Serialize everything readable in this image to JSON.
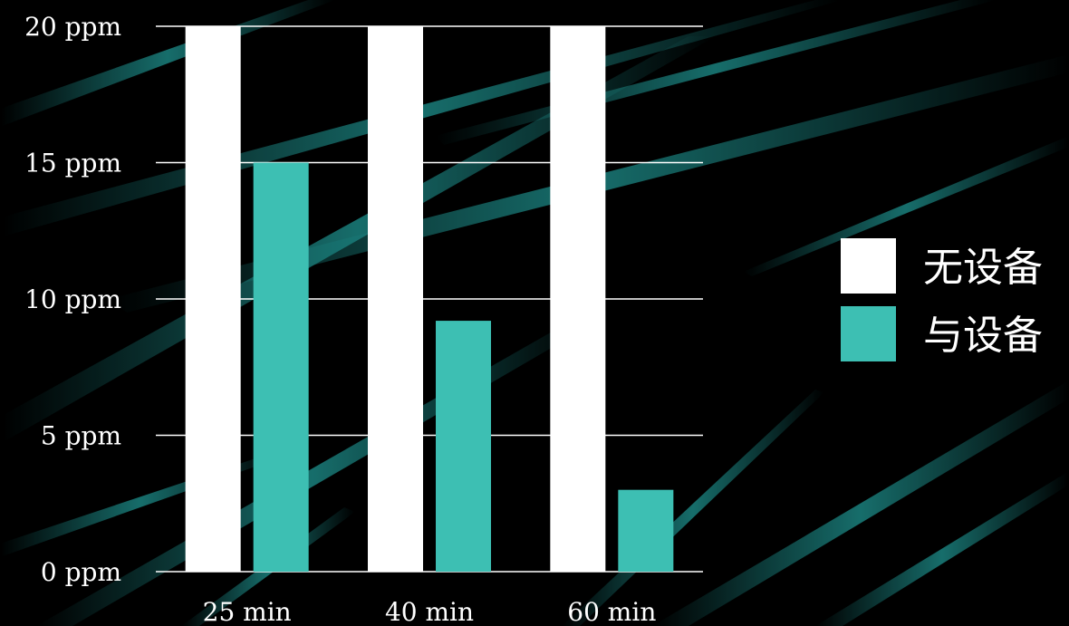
{
  "chart_data": {
    "type": "bar",
    "categories": [
      "25 min",
      "40 min",
      "60 min"
    ],
    "series": [
      {
        "name": "无设备",
        "values": [
          20,
          20,
          20
        ],
        "color": "#ffffff"
      },
      {
        "name": "与设备",
        "values": [
          15,
          9.2,
          3
        ],
        "color": "#3dbfb3"
      }
    ],
    "y_ticks": [
      "0 ppm",
      "5 ppm",
      "10 ppm",
      "15 ppm",
      "20 ppm"
    ],
    "y_tick_values": [
      0,
      5,
      10,
      15,
      20
    ],
    "ylim": [
      0,
      20
    ],
    "grid": true,
    "legend_position": "right",
    "background": "#000000",
    "accent_color": "#1e8f8c"
  }
}
